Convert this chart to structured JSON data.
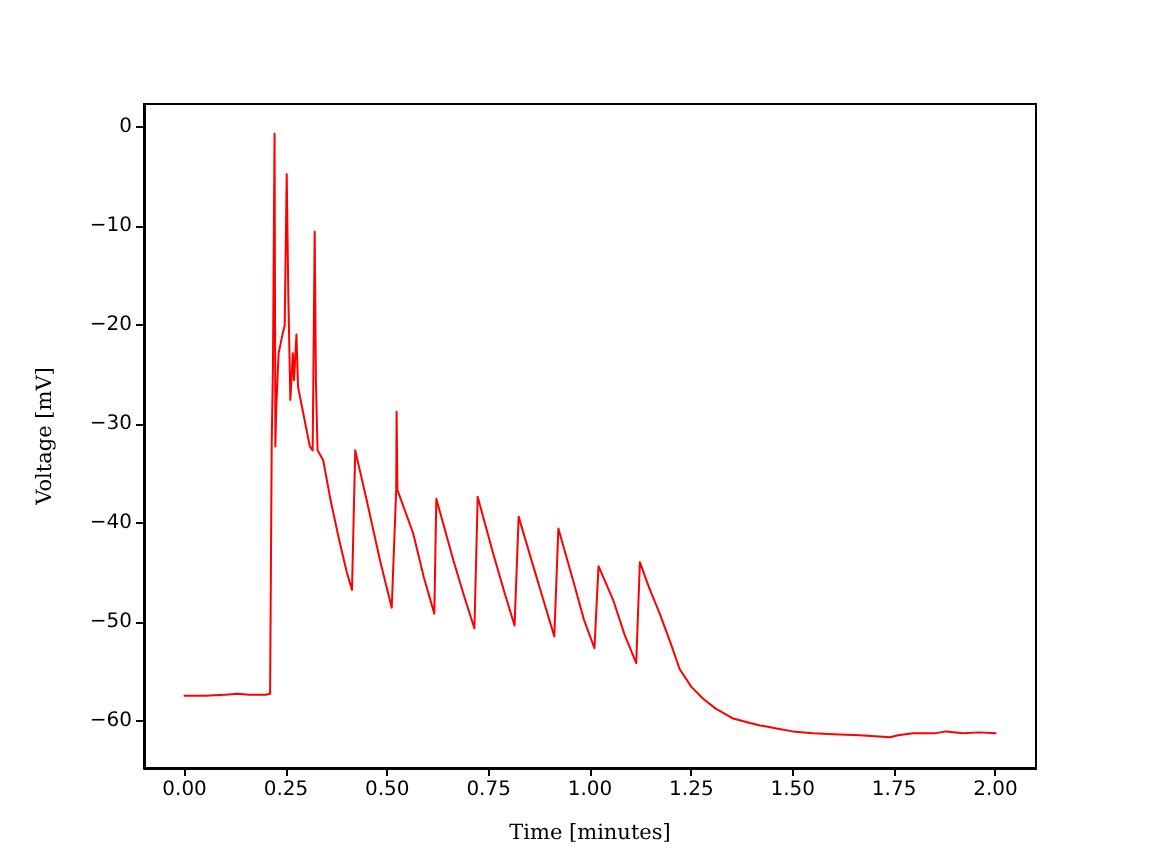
{
  "chart_data": {
    "type": "line",
    "xlabel": "Time [minutes]",
    "ylabel": "Voltage [mV]",
    "color": "#ff0000",
    "x": [
      0,
      0.05,
      0.1,
      0.13,
      0.16,
      0.2,
      0.211,
      0.215,
      0.218,
      0.222,
      0.224,
      0.226,
      0.232,
      0.242,
      0.247,
      0.252,
      0.256,
      0.261,
      0.267,
      0.27,
      0.276,
      0.28,
      0.293,
      0.309,
      0.316,
      0.321,
      0.324,
      0.328,
      0.342,
      0.36,
      0.38,
      0.4,
      0.413,
      0.421,
      0.449,
      0.482,
      0.511,
      0.522,
      0.523,
      0.525,
      0.564,
      0.59,
      0.616,
      0.621,
      0.663,
      0.69,
      0.715,
      0.723,
      0.761,
      0.79,
      0.814,
      0.824,
      0.86,
      0.89,
      0.912,
      0.922,
      0.958,
      0.985,
      1.011,
      1.021,
      1.057,
      1.085,
      1.114,
      1.123,
      1.145,
      1.172,
      1.2,
      1.221,
      1.25,
      1.279,
      1.31,
      1.336,
      1.353,
      1.39,
      1.419,
      1.435,
      1.46,
      1.5,
      1.55,
      1.6,
      1.665,
      1.74,
      1.76,
      1.797,
      1.85,
      1.879,
      1.92,
      1.96,
      2.0
    ],
    "values": [
      -57.5,
      -57.5,
      -57.4,
      -57.3,
      -57.4,
      -57.4,
      -57.3,
      -32,
      -24.2,
      -0.7,
      -32.3,
      -28.6,
      -22.9,
      -20.9,
      -20.1,
      -4.8,
      -17.2,
      -27.6,
      -22.9,
      -25.6,
      -21.0,
      -26.3,
      -29.0,
      -32.3,
      -32.7,
      -10.6,
      -25.6,
      -32.7,
      -33.7,
      -37.7,
      -41.5,
      -45,
      -46.8,
      -32.7,
      -37.7,
      -43.8,
      -48.6,
      -36.7,
      -28.8,
      -36.7,
      -41.1,
      -45.5,
      -49.2,
      -37.6,
      -43.8,
      -47.5,
      -50.7,
      -37.4,
      -43.1,
      -47.2,
      -50.4,
      -39.4,
      -44.4,
      -48.5,
      -51.5,
      -40.6,
      -45.8,
      -49.8,
      -52.7,
      -44.4,
      -47.8,
      -51.3,
      -54.2,
      -44.0,
      -46.5,
      -49.2,
      -52.3,
      -54.8,
      -56.6,
      -57.8,
      -58.8,
      -59.4,
      -59.8,
      -60.2,
      -60.5,
      -60.6,
      -60.8,
      -61.1,
      -61.3,
      -61.4,
      -61.5,
      -61.7,
      -61.5,
      -61.3,
      -61.3,
      -61.1,
      -61.3,
      -61.2,
      -61.3
    ],
    "xlim": [
      -0.1,
      2.1
    ],
    "ylim": [
      -64.8,
      2.3
    ],
    "xticks": [
      {
        "value": 0,
        "label": "0.00"
      },
      {
        "value": 0.25,
        "label": "0.25"
      },
      {
        "value": 0.5,
        "label": "0.50"
      },
      {
        "value": 0.75,
        "label": "0.75"
      },
      {
        "value": 1,
        "label": "1.00"
      },
      {
        "value": 1.25,
        "label": "1.25"
      },
      {
        "value": 1.5,
        "label": "1.50"
      },
      {
        "value": 1.75,
        "label": "1.75"
      },
      {
        "value": 2,
        "label": "2.00"
      }
    ],
    "yticks": [
      {
        "value": -60,
        "label": "−60"
      },
      {
        "value": -50,
        "label": "−50"
      },
      {
        "value": -40,
        "label": "−40"
      },
      {
        "value": -30,
        "label": "−30"
      },
      {
        "value": -20,
        "label": "−20"
      },
      {
        "value": -10,
        "label": "−10"
      },
      0
    ]
  }
}
